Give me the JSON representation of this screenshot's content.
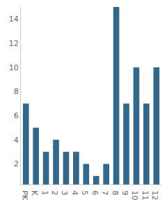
{
  "chart_data": {
    "type": "bar",
    "categories": [
      "PK",
      "K",
      "1",
      "2",
      "3",
      "4",
      "5",
      "6",
      "7",
      "8",
      "9",
      "10",
      "11",
      "12"
    ],
    "values": [
      7,
      5,
      3,
      4,
      3,
      3,
      2,
      1,
      2,
      15,
      7,
      10,
      7,
      10
    ],
    "color": "#346789",
    "ylim": [
      0.3,
      15
    ],
    "yticks": [
      2,
      4,
      6,
      8,
      10,
      12,
      14
    ],
    "grid": false
  }
}
